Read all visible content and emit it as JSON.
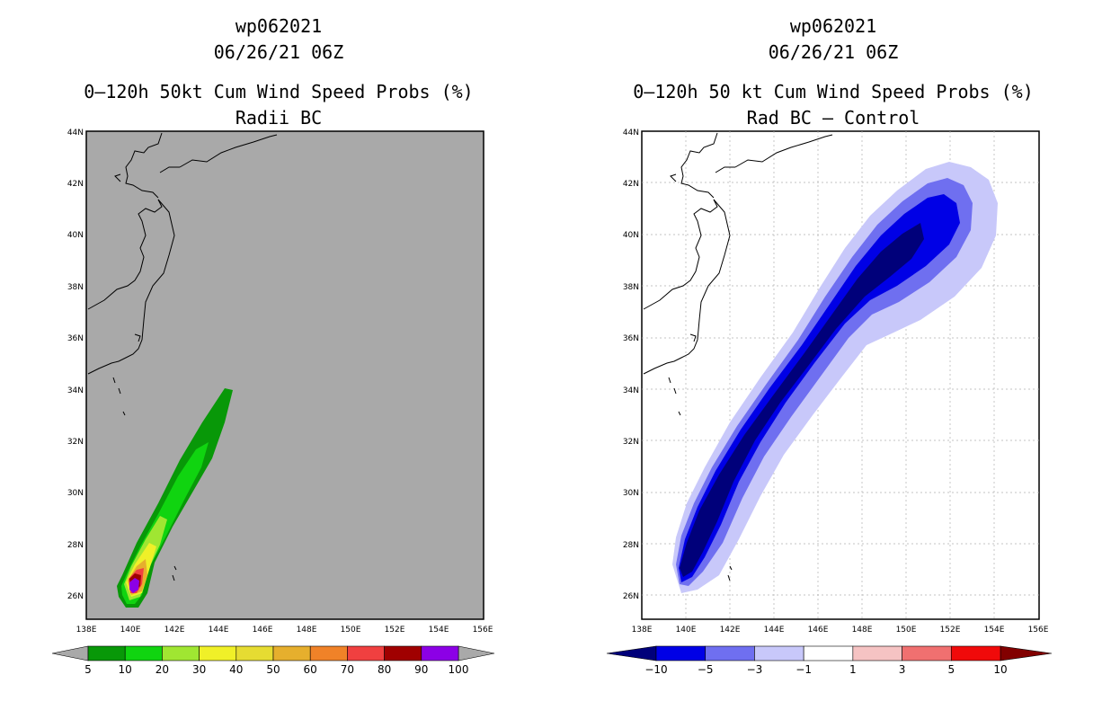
{
  "left": {
    "id": "wp062021",
    "datetime": "06/26/21 06Z",
    "title": "0–120h 50kt Cum Wind Speed Probs (%)",
    "subtitle": "Radii BC",
    "lat_ticks": [
      "26N",
      "28N",
      "30N",
      "32N",
      "34N",
      "36N",
      "38N",
      "40N",
      "42N",
      "44N"
    ],
    "lon_ticks": [
      "138E",
      "140E",
      "142E",
      "144E",
      "146E",
      "148E",
      "150E",
      "152E",
      "154E",
      "156E"
    ],
    "colorbar": {
      "labels": [
        "5",
        "10",
        "20",
        "30",
        "40",
        "50",
        "60",
        "70",
        "80",
        "90",
        "100"
      ],
      "colors": [
        "#089808",
        "#10d410",
        "#a0e632",
        "#f0f028",
        "#e6dc32",
        "#e6af2d",
        "#f08228",
        "#f04040",
        "#a00000",
        "#8c00e6"
      ],
      "end_colors": [
        "#a9a9a9",
        "#a9a9a9"
      ]
    }
  },
  "right": {
    "id": "wp062021",
    "datetime": "06/26/21 06Z",
    "title": "0–120h 50 kt Cum Wind Speed Probs (%)",
    "subtitle": "Rad BC – Control",
    "lat_ticks": [
      "26N",
      "28N",
      "30N",
      "32N",
      "34N",
      "36N",
      "38N",
      "40N",
      "42N",
      "44N"
    ],
    "lon_ticks": [
      "138E",
      "140E",
      "142E",
      "144E",
      "146E",
      "148E",
      "150E",
      "152E",
      "154E",
      "156E"
    ],
    "colorbar": {
      "labels": [
        "−10",
        "−5",
        "−3",
        "−1",
        "1",
        "3",
        "5",
        "10"
      ],
      "colors": [
        "#0000e6",
        "#6f6ff0",
        "#c8c8fa",
        "#ffffff",
        "#f5c3c3",
        "#f07070",
        "#f00a0a"
      ],
      "end_colors": [
        "#00007a",
        "#820000"
      ]
    }
  },
  "map_colors": {
    "background_left": "#a9a9a9",
    "background_right": "#ffffff",
    "coast": "#000000"
  }
}
